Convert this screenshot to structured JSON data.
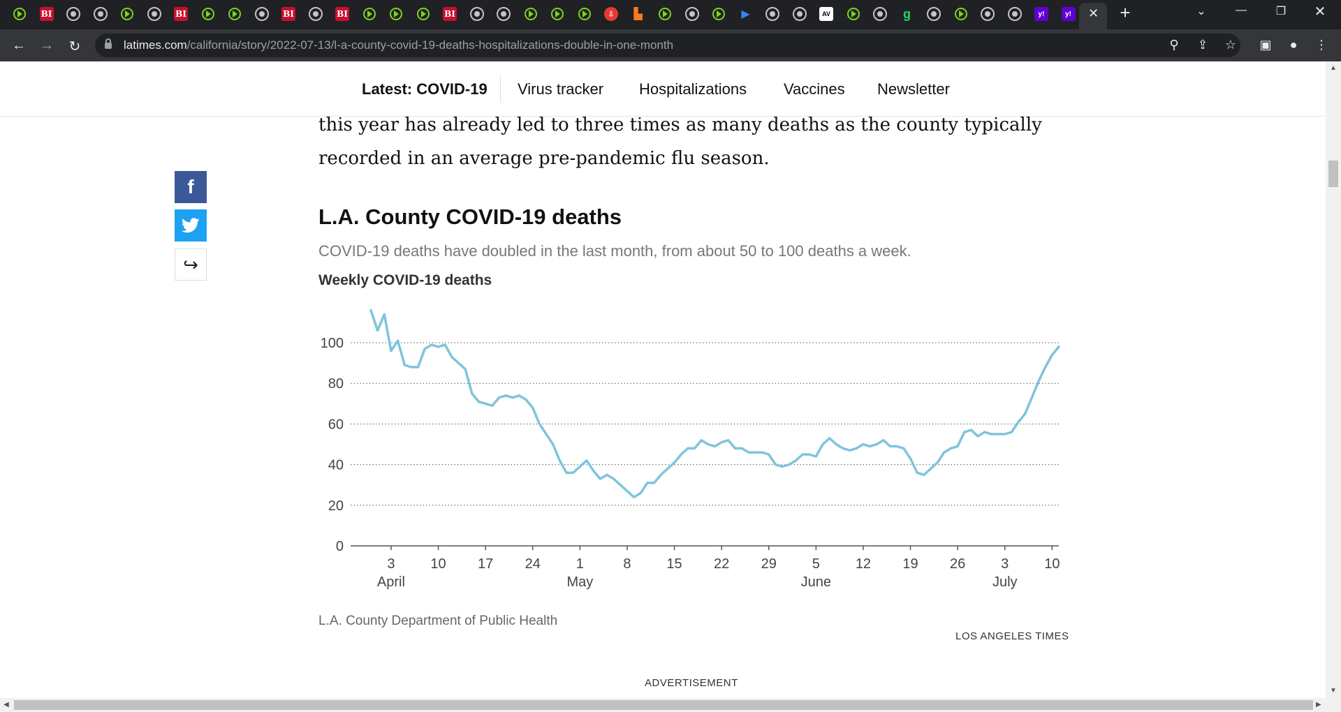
{
  "browser": {
    "tab_favicons": [
      "play",
      "bi",
      "globe",
      "globe",
      "play",
      "globe",
      "bi",
      "play",
      "play",
      "globe",
      "bi",
      "globe",
      "bi",
      "play",
      "play",
      "play",
      "bi",
      "globe",
      "globe",
      "play",
      "play",
      "play",
      "red",
      "orange",
      "play",
      "globe",
      "play",
      "blue",
      "globe",
      "globe",
      "dark",
      "play",
      "globe",
      "g",
      "globe",
      "play",
      "globe",
      "globe",
      "yahoo",
      "yahoo"
    ],
    "bi_text": "BI",
    "yahoo_text": "y!",
    "g_text": "g",
    "dark_text": "AV",
    "url_host": "latimes.com",
    "url_path": "/california/story/2022-07-13/l-a-county-covid-19-deaths-hospitalizations-double-in-one-month"
  },
  "nav": {
    "latest": "Latest: COVID-19",
    "links": [
      "Virus tracker",
      "Hospitalizations",
      "Vaccines",
      "Newsletter"
    ]
  },
  "article": {
    "line1": "this year has already led to three times as many deaths as the county typically",
    "line2": "recorded in an average pre-pandemic flu season."
  },
  "chart": {
    "title": "L.A. County COVID-19 deaths",
    "subtitle": "COVID-19 deaths have doubled in the last month, from about 50 to 100 deaths a week.",
    "label": "Weekly COVID-19 deaths",
    "source": "L.A. County Department of Public Health",
    "credit": "LOS ANGELES TIMES"
  },
  "advertisement": "ADVERTISEMENT",
  "chart_data": {
    "type": "line",
    "title": "Weekly COVID-19 deaths",
    "xlabel": "",
    "ylabel": "",
    "ylim": [
      0,
      100
    ],
    "yticks": [
      0,
      20,
      40,
      60,
      80,
      100
    ],
    "grid": true,
    "color": "#7fc4dc",
    "x_start": "2022-03-31",
    "x_range_days": [
      -3,
      102
    ],
    "xticks": [
      {
        "day": 3,
        "label": "3",
        "month": "April"
      },
      {
        "day": 10,
        "label": "10",
        "month": ""
      },
      {
        "day": 17,
        "label": "17",
        "month": ""
      },
      {
        "day": 24,
        "label": "24",
        "month": ""
      },
      {
        "day": 31,
        "label": "1",
        "month": "May"
      },
      {
        "day": 38,
        "label": "8",
        "month": ""
      },
      {
        "day": 45,
        "label": "15",
        "month": ""
      },
      {
        "day": 52,
        "label": "22",
        "month": ""
      },
      {
        "day": 59,
        "label": "29",
        "month": ""
      },
      {
        "day": 66,
        "label": "5",
        "month": "June"
      },
      {
        "day": 73,
        "label": "12",
        "month": ""
      },
      {
        "day": 80,
        "label": "19",
        "month": ""
      },
      {
        "day": 87,
        "label": "26",
        "month": ""
      },
      {
        "day": 94,
        "label": "3",
        "month": "July"
      },
      {
        "day": 101,
        "label": "10",
        "month": ""
      }
    ],
    "series": [
      {
        "name": "Weekly COVID-19 deaths",
        "x": [
          0,
          1,
          2,
          3,
          4,
          5,
          6,
          7,
          8,
          9,
          10,
          11,
          12,
          13,
          14,
          15,
          16,
          17,
          18,
          19,
          20,
          21,
          22,
          23,
          24,
          25,
          26,
          27,
          28,
          29,
          30,
          31,
          32,
          33,
          34,
          35,
          36,
          37,
          38,
          39,
          40,
          41,
          42,
          43,
          44,
          45,
          46,
          47,
          48,
          49,
          50,
          51,
          52,
          53,
          54,
          55,
          56,
          57,
          58,
          59,
          60,
          61,
          62,
          63,
          64,
          65,
          66,
          67,
          68,
          69,
          70,
          71,
          72,
          73,
          74,
          75,
          76,
          77,
          78,
          79,
          80,
          81,
          82,
          83,
          84,
          85,
          86,
          87,
          88,
          89,
          90,
          91,
          92,
          93,
          94,
          95,
          96,
          97,
          98,
          99,
          100,
          101,
          102
        ],
        "values": [
          116,
          106,
          114,
          96,
          101,
          89,
          88,
          88,
          97,
          99,
          98,
          99,
          93,
          90,
          87,
          75,
          71,
          70,
          69,
          73,
          74,
          73,
          74,
          72,
          68,
          60,
          55,
          50,
          42,
          36,
          36,
          39,
          42,
          37,
          33,
          35,
          33,
          30,
          27,
          24,
          26,
          31,
          31,
          35,
          38,
          41,
          45,
          48,
          48,
          52,
          50,
          49,
          51,
          52,
          48,
          48,
          46,
          46,
          46,
          45,
          40,
          39,
          40,
          42,
          45,
          45,
          44,
          50,
          53,
          50,
          48,
          47,
          48,
          50,
          49,
          50,
          52,
          49,
          49,
          48,
          43,
          36,
          35,
          38,
          41,
          46,
          48,
          49,
          56,
          57,
          54,
          56,
          55,
          55,
          55,
          56,
          61,
          65,
          73,
          81,
          88,
          94,
          98
        ]
      }
    ]
  }
}
